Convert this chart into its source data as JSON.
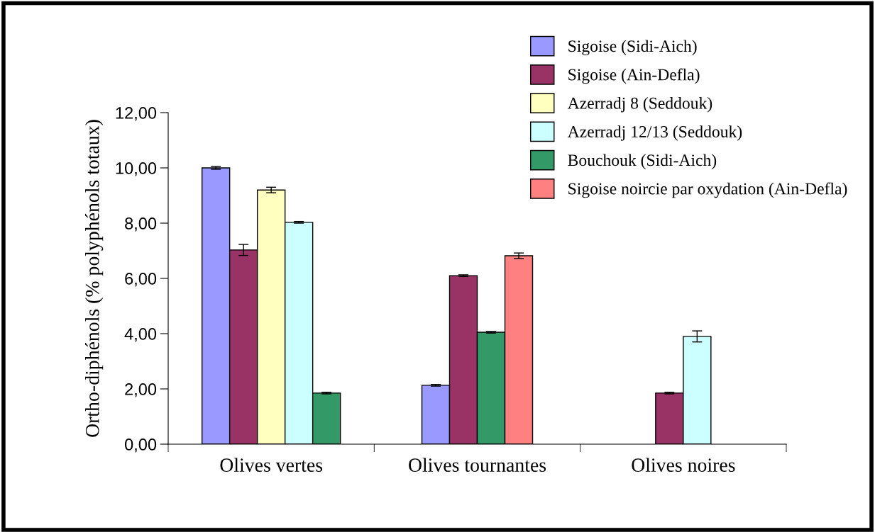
{
  "chart_data": {
    "type": "bar",
    "ylabel": "Ortho-diphénols (% polyphénols totaux)",
    "categories": [
      "Olives vertes",
      "Olives tournantes",
      "Olives noires"
    ],
    "series": [
      {
        "name": "Sigoise (Sidi-Aich)",
        "color": "#9999ff",
        "values": [
          10.0,
          2.13,
          null
        ],
        "errors": [
          0.05,
          0.03,
          null
        ]
      },
      {
        "name": "Sigoise (Ain-Defla)",
        "color": "#993366",
        "values": [
          7.03,
          6.1,
          1.85
        ],
        "errors": [
          0.2,
          0.03,
          0.03
        ]
      },
      {
        "name": "Azerradj 8 (Seddouk)",
        "color": "#ffffc0",
        "values": [
          9.2,
          null,
          null
        ],
        "errors": [
          0.1,
          null,
          null
        ]
      },
      {
        "name": "Azerradj 12/13 (Seddouk)",
        "color": "#ccffff",
        "values": [
          8.03,
          null,
          3.9
        ],
        "errors": [
          0.03,
          null,
          0.2
        ]
      },
      {
        "name": "Bouchouk (Sidi-Aich)",
        "color": "#339966",
        "values": [
          1.85,
          4.05,
          null
        ],
        "errors": [
          0.03,
          0.03,
          null
        ]
      },
      {
        "name": "Sigoise noircie par oxydation (Ain-Defla)",
        "color": "#ff8080",
        "values": [
          null,
          6.82,
          null
        ],
        "errors": [
          null,
          0.1,
          null
        ]
      }
    ],
    "ylim": [
      0,
      12
    ],
    "yticks": [
      {
        "value": 0,
        "label": "0,00"
      },
      {
        "value": 2,
        "label": "2,00"
      },
      {
        "value": 4,
        "label": "4,00"
      },
      {
        "value": 6,
        "label": "6,00"
      },
      {
        "value": 8,
        "label": "8,00"
      },
      {
        "value": 10,
        "label": "10,00"
      },
      {
        "value": 12,
        "label": "12,00"
      }
    ],
    "grid": false,
    "legend": "top right"
  }
}
